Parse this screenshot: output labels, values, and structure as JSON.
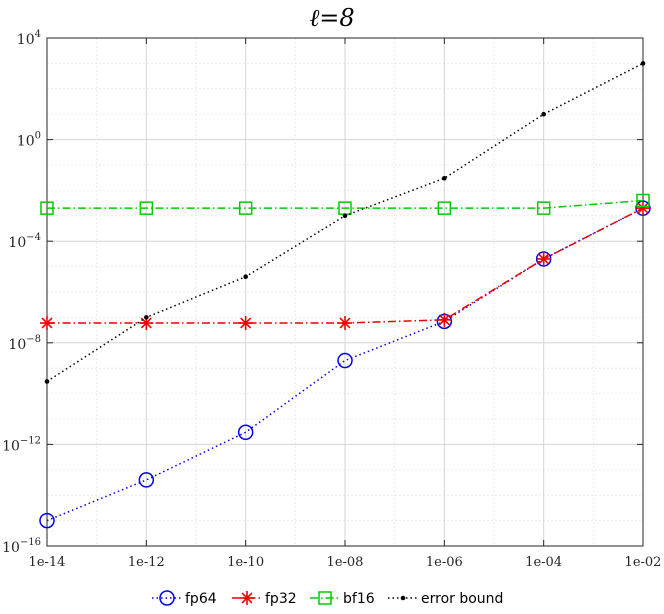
{
  "chart_data": {
    "type": "line",
    "title": "ℓ=8",
    "xscale": "log",
    "yscale": "log",
    "xlim": [
      1e-14,
      0.01
    ],
    "ylim": [
      1e-16,
      10000.0
    ],
    "grid": true,
    "legend_position": "bottom",
    "x_tick_labels": [
      "1e-14",
      "1e-12",
      "1e-10",
      "1e-08",
      "1e-06",
      "1e-04",
      "1e-02"
    ],
    "y_ticks": [
      {
        "base": "10",
        "exp": "4",
        "value": 10000.0
      },
      {
        "base": "10",
        "exp": "0",
        "value": 1
      },
      {
        "base": "10",
        "exp": "−4",
        "value": 0.0001
      },
      {
        "base": "10",
        "exp": "−8",
        "value": 1e-08
      },
      {
        "base": "10",
        "exp": "−12",
        "value": 1e-12
      },
      {
        "base": "10",
        "exp": "−16",
        "value": 1e-16
      }
    ],
    "x": [
      1e-14,
      1e-12,
      1e-10,
      1e-08,
      1e-06,
      0.0001,
      0.01
    ],
    "series": [
      {
        "name": "fp64",
        "color": "#0000ee",
        "marker": "circle",
        "dash": "dotted",
        "values": [
          1e-15,
          4e-14,
          3e-12,
          2e-09,
          7e-08,
          2e-05,
          0.002
        ]
      },
      {
        "name": "fp32",
        "color": "#ee0000",
        "marker": "star",
        "dash": "dashdot",
        "values": [
          6e-08,
          6e-08,
          6e-08,
          6e-08,
          8e-08,
          2e-05,
          0.002
        ]
      },
      {
        "name": "bf16",
        "color": "#00cc00",
        "marker": "square",
        "dash": "dashdot",
        "values": [
          0.002,
          0.002,
          0.002,
          0.002,
          0.002,
          0.002,
          0.004
        ]
      },
      {
        "name": "error bound",
        "color": "#000000",
        "marker": "dot",
        "dash": "dotted",
        "values": [
          3e-10,
          1e-07,
          4e-06,
          0.001,
          0.03,
          10.0,
          1000.0
        ]
      }
    ]
  }
}
